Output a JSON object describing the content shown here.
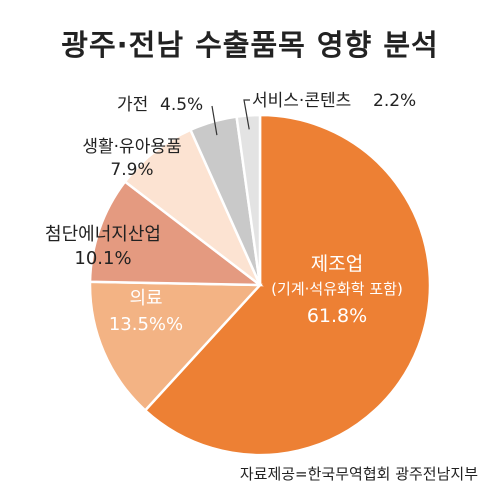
{
  "chart_data": {
    "type": "pie",
    "title": "광주·전남 수출품목 영향 분석",
    "slices": [
      {
        "label": "제조업",
        "sublabel": "(기계·석유화학 포함)",
        "value_text": "61.8%",
        "value": 61.8,
        "color": "#ED8034"
      },
      {
        "label": "의료",
        "value_text": "13.5%%",
        "value": 13.5,
        "color": "#F3B384"
      },
      {
        "label": "첨단에너지산업",
        "value_text": "10.1%",
        "value": 10.1,
        "color": "#E49A80"
      },
      {
        "label": "생활·유아용품",
        "value_text": "7.9%",
        "value": 7.9,
        "color": "#FCE3D2"
      },
      {
        "label": "가전",
        "value_text": "4.5%",
        "value": 4.5,
        "color": "#C9C9C9"
      },
      {
        "label": "서비스·콘텐츠",
        "value_text": "2.2%",
        "value": 2.2,
        "color": "#E3E3E3"
      }
    ],
    "source": "자료제공=한국무역협회 광주전남지부"
  }
}
